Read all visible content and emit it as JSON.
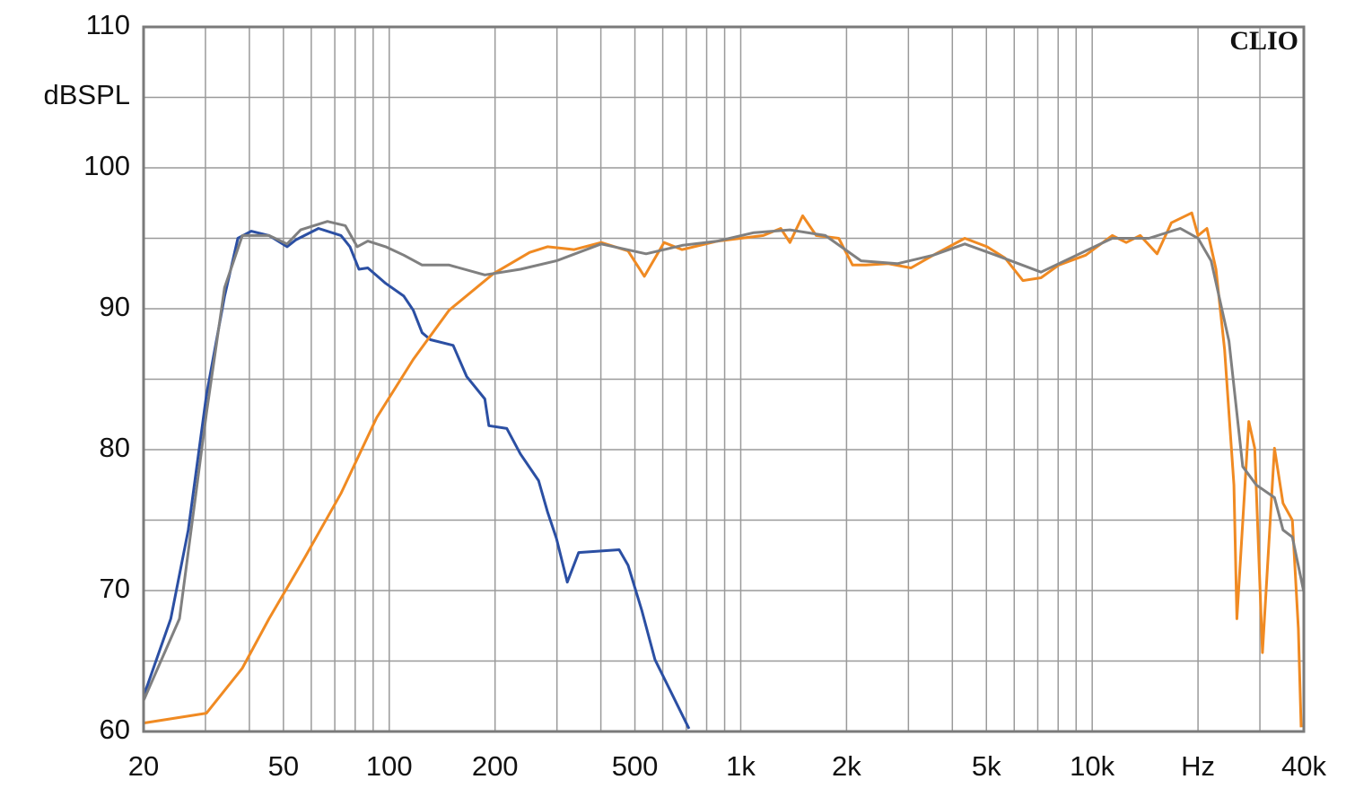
{
  "chart_data": {
    "type": "line",
    "log_x": true,
    "grid": true,
    "y_label": "dBSPL",
    "annotation": "CLIO",
    "xlim": [
      20,
      40000
    ],
    "ylim": [
      60,
      110
    ],
    "xticks": [
      20,
      50,
      100,
      200,
      500,
      {
        "value": 1000,
        "label": "1k"
      },
      {
        "value": 2000,
        "label": "2k"
      },
      {
        "value": 5000,
        "label": "5k"
      },
      {
        "value": 10000,
        "label": "10k"
      },
      {
        "value": 20000,
        "label": "Hz"
      },
      {
        "value": 40000,
        "label": "40k"
      }
    ],
    "xminor_ticks": [
      30,
      40,
      60,
      70,
      80,
      90,
      300,
      400,
      600,
      700,
      800,
      900,
      3000,
      4000,
      6000,
      7000,
      8000,
      9000,
      30000
    ],
    "yticks": [
      60,
      70,
      80,
      90,
      100,
      110
    ],
    "yminor_ticks": [
      65,
      75,
      85,
      95,
      105
    ],
    "series": [
      {
        "color": "#2b4fa3",
        "x": [
          20,
          23.9,
          26.8,
          30.2,
          34.0,
          37.1,
          40.5,
          45.5,
          51.2,
          54.3,
          62.9,
          72.9,
          77.3,
          82.0,
          86.9,
          97.7,
          110,
          117,
          124,
          131,
          152,
          166,
          187,
          192,
          216,
          236,
          266,
          282,
          299,
          321,
          346,
          451,
          478,
          523,
          570,
          642,
          713
        ],
        "values": [
          62.5,
          68.0,
          74.3,
          83.9,
          90.9,
          95.0,
          95.5,
          95.2,
          94.4,
          94.9,
          95.7,
          95.2,
          94.4,
          92.8,
          92.9,
          91.8,
          90.9,
          89.9,
          88.3,
          87.8,
          87.4,
          85.2,
          83.6,
          81.7,
          81.5,
          79.7,
          77.8,
          75.6,
          73.7,
          70.6,
          72.7,
          72.9,
          71.8,
          68.6,
          65.1,
          62.5,
          60.2
        ]
      },
      {
        "color": "#f08a22",
        "x": [
          20,
          30.2,
          38.2,
          45.5,
          57.7,
          72.9,
          92.2,
          117,
          148,
          198,
          251,
          282,
          336,
          401,
          478,
          532,
          605,
          681,
          861,
          1000,
          1160,
          1300,
          1380,
          1500,
          1640,
          1900,
          2080,
          2270,
          2630,
          3050,
          3530,
          4340,
          5020,
          5650,
          6350,
          7150,
          8030,
          9580,
          11400,
          12500,
          13700,
          15300,
          16800,
          19200,
          20000,
          21200,
          22500,
          23800,
          25300,
          25800,
          27900,
          29000,
          30500,
          33000,
          34900,
          37100,
          38600,
          39300
        ],
        "values": [
          60.6,
          61.3,
          64.5,
          68.0,
          72.4,
          76.9,
          82.3,
          86.4,
          89.9,
          92.5,
          94.0,
          94.4,
          94.2,
          94.7,
          94.1,
          92.3,
          94.7,
          94.2,
          94.8,
          95.0,
          95.2,
          95.7,
          94.7,
          96.6,
          95.2,
          95.0,
          93.1,
          93.1,
          93.2,
          92.9,
          93.8,
          95.0,
          94.4,
          93.6,
          92.0,
          92.2,
          93.1,
          93.8,
          95.2,
          94.7,
          95.2,
          93.9,
          96.1,
          96.8,
          95.2,
          95.7,
          92.8,
          87.1,
          77.5,
          68.0,
          82.0,
          80.1,
          65.6,
          80.1,
          76.2,
          75.0,
          67.3,
          60.3
        ]
      },
      {
        "color": "#808080",
        "x": [
          20,
          25.3,
          30.2,
          34.0,
          38.2,
          45.5,
          51.2,
          56.0,
          66.7,
          75.0,
          81.1,
          86.9,
          97.7,
          110,
          124,
          148,
          187,
          236,
          299,
          401,
          538,
          681,
          861,
          1090,
          1380,
          1740,
          2200,
          2790,
          3530,
          4340,
          5320,
          7150,
          9030,
          11400,
          14500,
          17800,
          20000,
          21800,
          24500,
          26800,
          29300,
          33000,
          34900,
          37100,
          40000
        ],
        "values": [
          62.2,
          68.0,
          82.6,
          91.5,
          95.2,
          95.2,
          94.6,
          95.6,
          96.2,
          95.9,
          94.4,
          94.8,
          94.4,
          93.8,
          93.1,
          93.1,
          92.4,
          92.8,
          93.4,
          94.6,
          93.9,
          94.5,
          94.8,
          95.4,
          95.6,
          95.2,
          93.4,
          93.2,
          93.8,
          94.6,
          93.8,
          92.6,
          93.8,
          95.0,
          95.0,
          95.7,
          95.0,
          93.4,
          87.7,
          78.8,
          77.5,
          76.6,
          74.3,
          73.8,
          69.9
        ]
      }
    ]
  }
}
